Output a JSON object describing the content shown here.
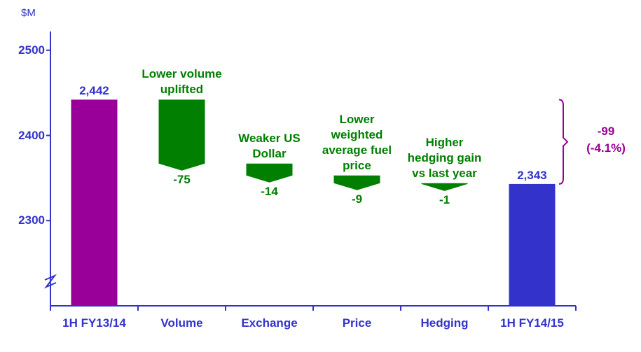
{
  "chart_data": {
    "type": "waterfall",
    "y_axis_label": "$M",
    "categories": [
      "1H FY13/14",
      "Volume",
      "Exchange",
      "Price",
      "Hedging",
      "1H FY14/15"
    ],
    "measure": [
      "total",
      "relative",
      "relative",
      "relative",
      "relative",
      "total"
    ],
    "values": [
      2442,
      -75,
      -14,
      -9,
      -1,
      2343
    ],
    "value_labels": [
      "2,442",
      "-75",
      "-14",
      "-9",
      "-1",
      "2,343"
    ],
    "colors": [
      "#990099",
      "#007f00",
      "#007f00",
      "#007f00",
      "#007f00",
      "#3333cc"
    ],
    "annotations": [
      null,
      "Lower volume uplifted",
      "Weaker US Dollar",
      "Lower weighted average fuel price",
      "Higher hedging gain vs last year",
      null
    ],
    "total_change": {
      "value": -99,
      "label": "-99",
      "percent_label": "(-4.1%)"
    },
    "ylim": [
      2200,
      2522
    ],
    "yticks": [
      2300,
      2400,
      2500
    ]
  }
}
